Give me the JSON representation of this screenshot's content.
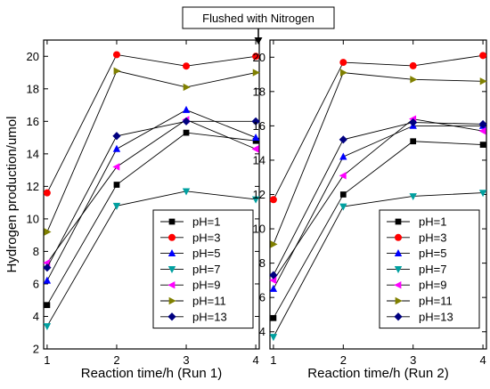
{
  "annotation": {
    "text": "Flushed with Nitrogen"
  },
  "chart_data": [
    {
      "type": "line",
      "title": "",
      "xlabel": "Reaction time/h (Run 1)",
      "ylabel": "Hydrogen production/umol",
      "x": [
        1,
        2,
        3,
        4
      ],
      "xticks": [
        "1",
        "2",
        "3",
        "4"
      ],
      "ylim": [
        2,
        21
      ],
      "yticks": [
        "2",
        "4",
        "6",
        "8",
        "10",
        "12",
        "14",
        "16",
        "18",
        "20"
      ],
      "legend_position": "bottom-right",
      "series": [
        {
          "name": "pH=1",
          "marker": "square",
          "color": "#000000",
          "values": [
            4.7,
            12.1,
            15.3,
            14.8
          ]
        },
        {
          "name": "pH=3",
          "marker": "circle",
          "color": "#ff0000",
          "values": [
            11.6,
            20.1,
            19.4,
            20.0
          ]
        },
        {
          "name": "pH=5",
          "marker": "triangle-up",
          "color": "#0000ff",
          "values": [
            6.2,
            14.3,
            16.7,
            15.0
          ]
        },
        {
          "name": "pH=7",
          "marker": "triangle-down",
          "color": "#00a0a0",
          "values": [
            3.4,
            10.8,
            11.7,
            11.2
          ]
        },
        {
          "name": "pH=9",
          "marker": "triangle-left",
          "color": "#ff00ff",
          "values": [
            7.3,
            13.2,
            16.1,
            14.3
          ]
        },
        {
          "name": "pH=11",
          "marker": "triangle-right",
          "color": "#808000",
          "values": [
            9.2,
            19.1,
            18.1,
            19.0
          ]
        },
        {
          "name": "pH=13",
          "marker": "diamond",
          "color": "#000080",
          "values": [
            7.0,
            15.1,
            16.0,
            16.0
          ]
        }
      ]
    },
    {
      "type": "line",
      "title": "",
      "xlabel": "Reaction time/h (Run 2)",
      "ylabel": "",
      "x": [
        1,
        2,
        3,
        4
      ],
      "xticks": [
        "1",
        "2",
        "3",
        "4"
      ],
      "ylim": [
        3,
        21
      ],
      "yticks": [
        "4",
        "6",
        "8",
        "10",
        "12",
        "14",
        "16",
        "18",
        "20"
      ],
      "legend_position": "bottom-right",
      "series": [
        {
          "name": "pH=1",
          "marker": "square",
          "color": "#000000",
          "values": [
            4.8,
            12.0,
            15.1,
            14.9
          ]
        },
        {
          "name": "pH=3",
          "marker": "circle",
          "color": "#ff0000",
          "values": [
            11.7,
            19.7,
            19.5,
            20.1
          ]
        },
        {
          "name": "pH=5",
          "marker": "triangle-up",
          "color": "#0000ff",
          "values": [
            6.5,
            14.2,
            16.0,
            16.0
          ]
        },
        {
          "name": "pH=7",
          "marker": "triangle-down",
          "color": "#00a0a0",
          "values": [
            3.7,
            11.3,
            11.9,
            12.1
          ]
        },
        {
          "name": "pH=9",
          "marker": "triangle-left",
          "color": "#ff00ff",
          "values": [
            7.0,
            13.1,
            16.4,
            15.7
          ]
        },
        {
          "name": "pH=11",
          "marker": "triangle-right",
          "color": "#808000",
          "values": [
            9.1,
            19.1,
            18.7,
            18.6
          ]
        },
        {
          "name": "pH=13",
          "marker": "diamond",
          "color": "#000080",
          "values": [
            7.3,
            15.2,
            16.2,
            16.1
          ]
        }
      ]
    }
  ]
}
